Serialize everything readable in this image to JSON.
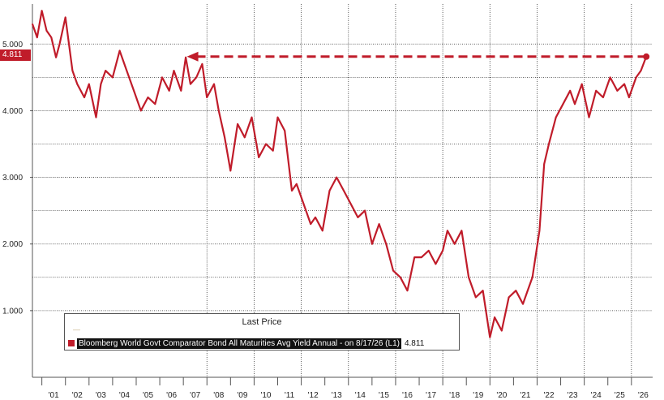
{
  "colors": {
    "series": "#c01c2a",
    "grid": "#333333",
    "axis": "#555555"
  },
  "chart_data": {
    "type": "line",
    "title": "",
    "xlabel": "",
    "ylabel": "",
    "ylim": [
      0.0,
      5.6
    ],
    "yticks": [
      1.0,
      2.0,
      3.0,
      4.0,
      5.0
    ],
    "ytick_labels": [
      "1.000",
      "2.000",
      "3.000",
      "4.000",
      "5.000"
    ],
    "xlim": [
      2000.6,
      2026.9
    ],
    "xtick_labels": [
      "'01",
      "'02",
      "'03",
      "'04",
      "'05",
      "'06",
      "'07",
      "'08",
      "'09",
      "'10",
      "'11",
      "'12",
      "'13",
      "'14",
      "'15",
      "'16",
      "'17",
      "'18",
      "'19",
      "'20",
      "'21",
      "'22",
      "'23",
      "'24",
      "'25",
      "'26"
    ],
    "grid": true,
    "legend": "bottom-left",
    "legend_title": "Last Price",
    "series": [
      {
        "name": "Bloomberg World Govt Comparator Bond All Maturities Avg Yield Annual -  on 8/17/26  (L1)",
        "last_value": "4.811",
        "x": [
          2000.6,
          2000.8,
          2001.0,
          2001.2,
          2001.4,
          2001.6,
          2001.75,
          2002.0,
          2002.3,
          2002.5,
          2002.8,
          2003.0,
          2003.3,
          2003.5,
          2003.7,
          2004.0,
          2004.3,
          2004.6,
          2004.9,
          2005.2,
          2005.5,
          2005.8,
          2006.1,
          2006.4,
          2006.6,
          2006.9,
          2007.1,
          2007.3,
          2007.55,
          2007.8,
          2008.0,
          2008.3,
          2008.5,
          2008.75,
          2009.0,
          2009.3,
          2009.6,
          2009.9,
          2010.2,
          2010.5,
          2010.8,
          2011.0,
          2011.3,
          2011.6,
          2011.8,
          2012.1,
          2012.4,
          2012.6,
          2012.9,
          2013.2,
          2013.5,
          2013.8,
          2014.1,
          2014.4,
          2014.7,
          2015.0,
          2015.3,
          2015.6,
          2015.9,
          2016.2,
          2016.5,
          2016.8,
          2017.1,
          2017.4,
          2017.7,
          2018.0,
          2018.2,
          2018.5,
          2018.8,
          2019.1,
          2019.4,
          2019.7,
          2020.0,
          2020.2,
          2020.5,
          2020.8,
          2021.1,
          2021.4,
          2021.6,
          2021.8,
          2022.1,
          2022.3,
          2022.5,
          2022.8,
          2023.1,
          2023.4,
          2023.6,
          2023.9,
          2024.2,
          2024.5,
          2024.8,
          2025.1,
          2025.4,
          2025.7,
          2025.9,
          2026.2,
          2026.4,
          2026.63
        ],
        "values": [
          5.3,
          5.1,
          5.5,
          5.2,
          5.1,
          4.8,
          5.0,
          5.4,
          4.6,
          4.4,
          4.2,
          4.4,
          3.9,
          4.4,
          4.6,
          4.5,
          4.9,
          4.6,
          4.3,
          4.0,
          4.2,
          4.1,
          4.5,
          4.3,
          4.6,
          4.3,
          4.8,
          4.4,
          4.5,
          4.7,
          4.2,
          4.4,
          4.0,
          3.6,
          3.1,
          3.8,
          3.6,
          3.9,
          3.3,
          3.5,
          3.4,
          3.9,
          3.7,
          2.8,
          2.9,
          2.6,
          2.3,
          2.4,
          2.2,
          2.8,
          3.0,
          2.8,
          2.6,
          2.4,
          2.5,
          2.0,
          2.3,
          2.0,
          1.6,
          1.5,
          1.3,
          1.8,
          1.8,
          1.9,
          1.7,
          1.9,
          2.2,
          2.0,
          2.2,
          1.5,
          1.2,
          1.3,
          0.6,
          0.9,
          0.7,
          1.2,
          1.3,
          1.1,
          1.3,
          1.5,
          2.2,
          3.2,
          3.5,
          3.9,
          4.1,
          4.3,
          4.1,
          4.4,
          3.9,
          4.3,
          4.2,
          4.5,
          4.3,
          4.4,
          4.2,
          4.5,
          4.6,
          4.811
        ]
      }
    ]
  }
}
